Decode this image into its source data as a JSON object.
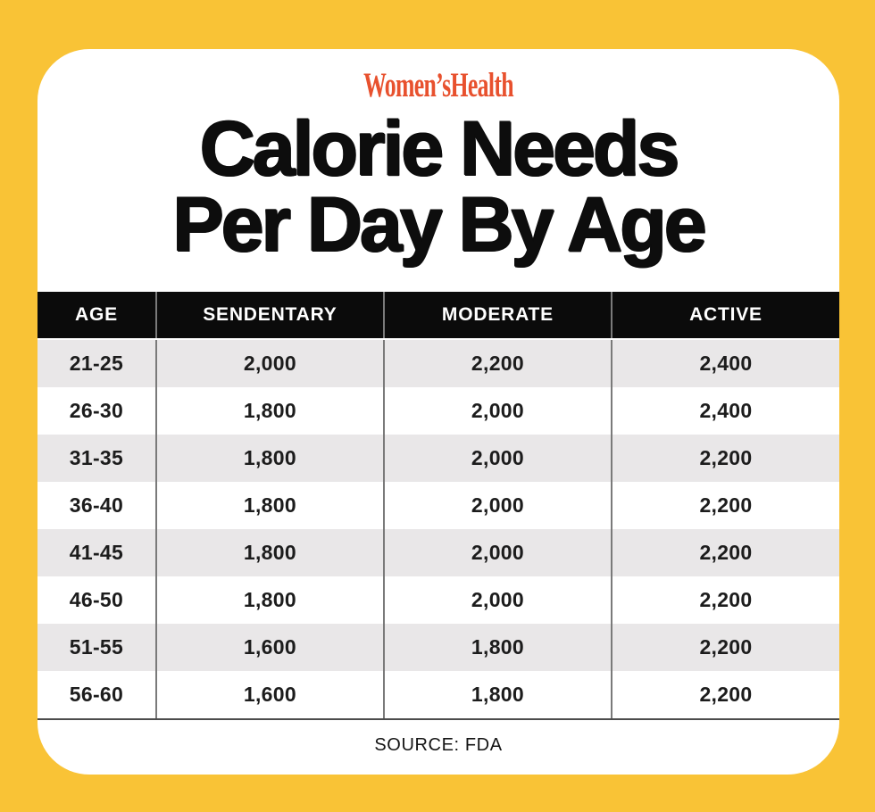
{
  "brand": {
    "logo_text": "Women’sHealth"
  },
  "title": {
    "line1": "Calorie Needs",
    "line2": "Per Day By Age"
  },
  "table": {
    "columns": [
      "AGE",
      "SENDENTARY",
      "MODERATE",
      "ACTIVE"
    ],
    "rows": [
      [
        "21-25",
        "2,000",
        "2,200",
        "2,400"
      ],
      [
        "26-30",
        "1,800",
        "2,000",
        "2,400"
      ],
      [
        "31-35",
        "1,800",
        "2,000",
        "2,200"
      ],
      [
        "36-40",
        "1,800",
        "2,000",
        "2,200"
      ],
      [
        "41-45",
        "1,800",
        "2,000",
        "2,200"
      ],
      [
        "46-50",
        "1,800",
        "2,000",
        "2,200"
      ],
      [
        "51-55",
        "1,600",
        "1,800",
        "2,200"
      ],
      [
        "56-60",
        "1,600",
        "1,800",
        "2,200"
      ]
    ]
  },
  "footer": {
    "source_label": "SOURCE: FDA"
  },
  "colors": {
    "background_yellow": "#F9C336",
    "card_white": "#FFFFFF",
    "header_black": "#0B0B0B",
    "row_gray": "#E9E7E8",
    "logo_orange": "#E8512E",
    "divider_gray": "#7A7A7A",
    "text_black": "#1C1C1C"
  },
  "chart_data": {
    "type": "table",
    "title": "Calorie Needs Per Day By Age",
    "columns": [
      "AGE",
      "SENDENTARY",
      "MODERATE",
      "ACTIVE"
    ],
    "rows": [
      [
        "21-25",
        "2,000",
        "2,200",
        "2,400"
      ],
      [
        "26-30",
        "1,800",
        "2,000",
        "2,400"
      ],
      [
        "31-35",
        "1,800",
        "2,000",
        "2,200"
      ],
      [
        "36-40",
        "1,800",
        "2,000",
        "2,200"
      ],
      [
        "41-45",
        "1,800",
        "2,000",
        "2,200"
      ],
      [
        "46-50",
        "1,800",
        "2,000",
        "2,200"
      ],
      [
        "51-55",
        "1,600",
        "1,800",
        "2,200"
      ],
      [
        "56-60",
        "1,600",
        "1,800",
        "2,200"
      ]
    ],
    "source": "FDA"
  }
}
